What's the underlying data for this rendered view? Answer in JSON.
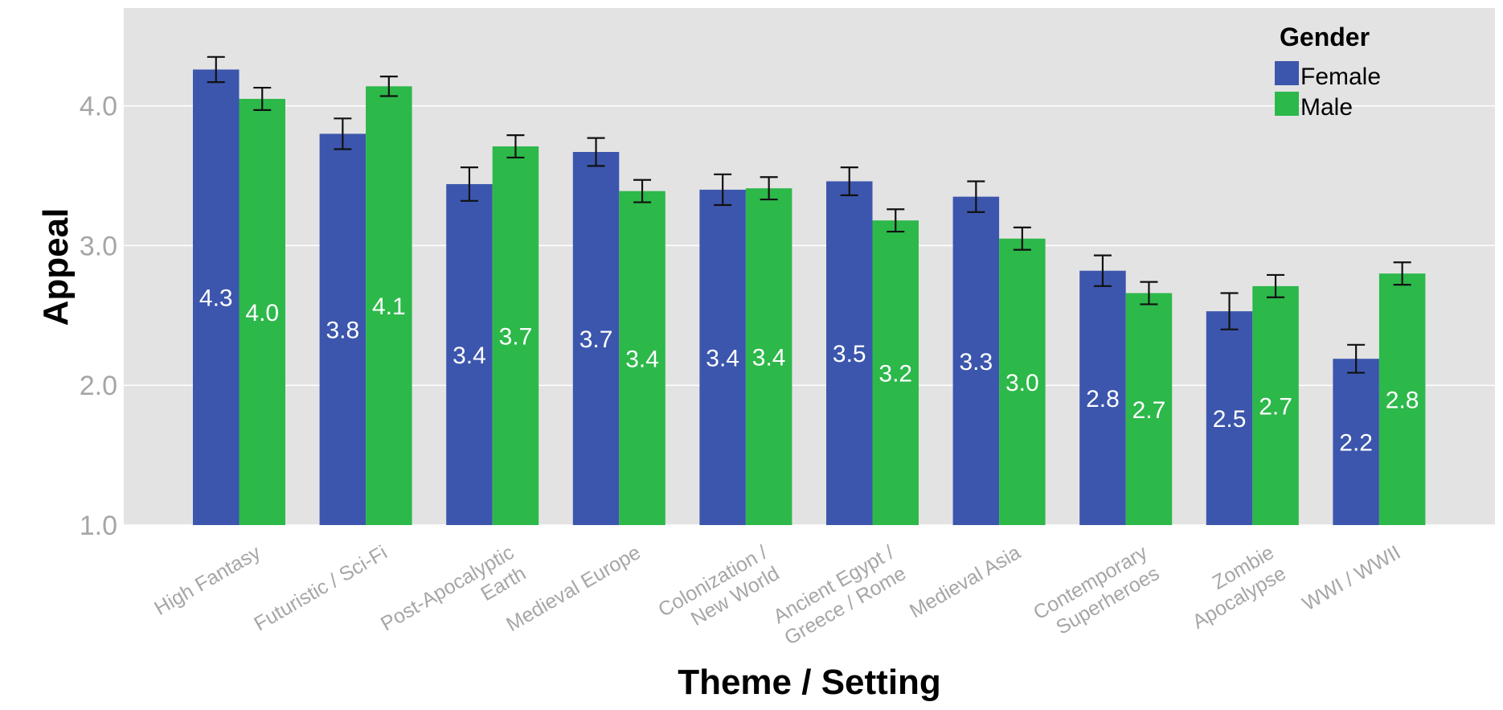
{
  "chart_data": {
    "type": "bar",
    "xlabel": "Theme / Setting",
    "ylabel": "Appeal",
    "ylim": [
      1.0,
      4.7
    ],
    "yticks": [
      "1.0",
      "2.0",
      "3.0",
      "4.0"
    ],
    "grid": true,
    "legend": {
      "title": "Gender",
      "position": "top-right"
    },
    "categories": [
      "High Fantasy",
      "Futuristic / Sci-Fi",
      "Post-Apocalyptic\nEarth",
      "Medieval Europe",
      "Colonization /\nNew World",
      "Ancient Egypt /\nGreece / Rome",
      "Medieval Asia",
      "Contemporary\nSuperheroes",
      "Zombie\nApocalypse",
      "WWI / WWII"
    ],
    "series": [
      {
        "name": "Female",
        "color": "#3c56ad",
        "values": [
          4.26,
          3.8,
          3.44,
          3.67,
          3.4,
          3.46,
          3.35,
          2.82,
          2.53,
          2.19
        ],
        "error": [
          0.09,
          0.11,
          0.12,
          0.1,
          0.11,
          0.1,
          0.11,
          0.11,
          0.13,
          0.1
        ],
        "labels": [
          "4.3",
          "3.8",
          "3.4",
          "3.7",
          "3.4",
          "3.5",
          "3.3",
          "2.8",
          "2.5",
          "2.2"
        ]
      },
      {
        "name": "Male",
        "color": "#2db84a",
        "values": [
          4.05,
          4.14,
          3.71,
          3.39,
          3.41,
          3.18,
          3.05,
          2.66,
          2.71,
          2.8
        ],
        "error": [
          0.08,
          0.07,
          0.08,
          0.08,
          0.08,
          0.08,
          0.08,
          0.08,
          0.08,
          0.08
        ],
        "labels": [
          "4.0",
          "4.1",
          "3.7",
          "3.4",
          "3.4",
          "3.2",
          "3.0",
          "2.7",
          "2.7",
          "2.8"
        ]
      }
    ]
  }
}
